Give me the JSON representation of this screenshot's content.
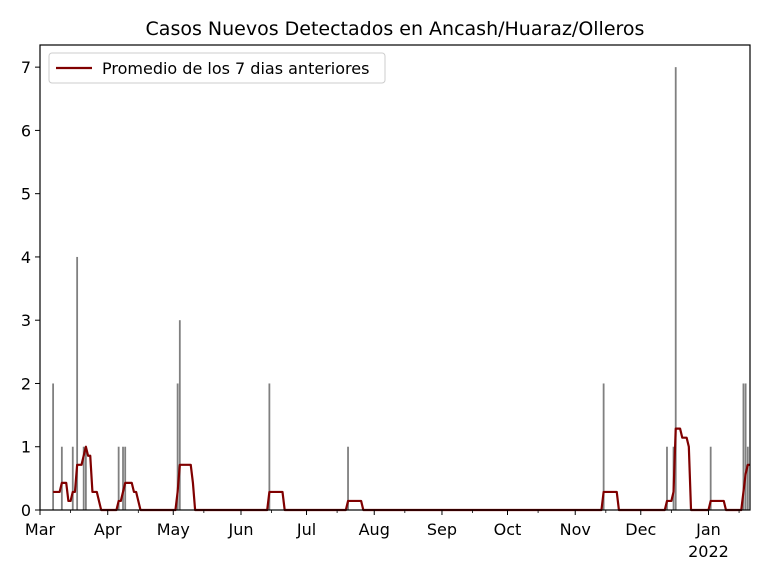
{
  "chart_data": {
    "type": "bar",
    "title": "Casos Nuevos Detectados en Ancash/Huaraz/Olleros",
    "xlabel": "",
    "ylabel": "",
    "x_range": [
      "2021-03-01",
      "2022-01-20"
    ],
    "ylim": [
      0,
      7.35
    ],
    "y_ticks": [
      0,
      1,
      2,
      3,
      4,
      5,
      6,
      7
    ],
    "x_ticks": [
      {
        "date": "2021-03-01",
        "label": "Mar"
      },
      {
        "date": "2021-04-01",
        "label": "Apr"
      },
      {
        "date": "2021-05-01",
        "label": "May"
      },
      {
        "date": "2021-06-01",
        "label": "Jun"
      },
      {
        "date": "2021-07-01",
        "label": "Jul"
      },
      {
        "date": "2021-08-01",
        "label": "Aug"
      },
      {
        "date": "2021-09-01",
        "label": "Sep"
      },
      {
        "date": "2021-10-01",
        "label": "Oct"
      },
      {
        "date": "2021-11-01",
        "label": "Nov"
      },
      {
        "date": "2021-12-01",
        "label": "Dec"
      },
      {
        "date": "2022-01-01",
        "label": "Jan",
        "sublabel": "2022"
      }
    ],
    "grid": false,
    "legend_position": "top-left",
    "colors": {
      "bars": "#808080",
      "line": "#800000"
    },
    "daily_cases": [
      {
        "date": "2021-03-07",
        "value": 2
      },
      {
        "date": "2021-03-11",
        "value": 1
      },
      {
        "date": "2021-03-16",
        "value": 1
      },
      {
        "date": "2021-03-18",
        "value": 4
      },
      {
        "date": "2021-03-21",
        "value": 1
      },
      {
        "date": "2021-03-22",
        "value": 1
      },
      {
        "date": "2021-04-06",
        "value": 1
      },
      {
        "date": "2021-04-08",
        "value": 1
      },
      {
        "date": "2021-04-09",
        "value": 1
      },
      {
        "date": "2021-05-03",
        "value": 2
      },
      {
        "date": "2021-05-04",
        "value": 3
      },
      {
        "date": "2021-06-14",
        "value": 2
      },
      {
        "date": "2021-07-20",
        "value": 1
      },
      {
        "date": "2021-11-14",
        "value": 2
      },
      {
        "date": "2021-12-13",
        "value": 1
      },
      {
        "date": "2021-12-16",
        "value": 1
      },
      {
        "date": "2021-12-17",
        "value": 7
      },
      {
        "date": "2022-01-02",
        "value": 1
      },
      {
        "date": "2022-01-17",
        "value": 2
      },
      {
        "date": "2022-01-18",
        "value": 2
      },
      {
        "date": "2022-01-19",
        "value": 1
      }
    ],
    "series": [
      {
        "name": "Promedio de los 7 dias anteriores",
        "rolling_days": 7
      }
    ]
  }
}
